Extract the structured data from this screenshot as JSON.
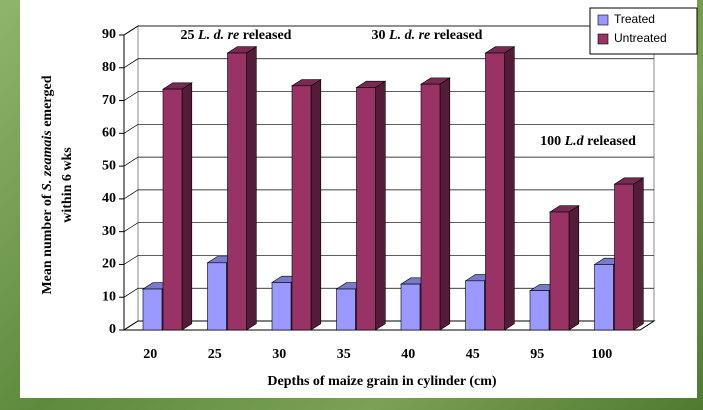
{
  "chart_data": {
    "type": "bar3d",
    "categories": [
      "20",
      "25",
      "30",
      "35",
      "40",
      "45",
      "95",
      "100"
    ],
    "series": [
      {
        "name": "Treated",
        "color": "#9999ff",
        "values": [
          12.5,
          20.5,
          14.5,
          12.5,
          14,
          15,
          12,
          20
        ]
      },
      {
        "name": "Untreated",
        "color": "#993366",
        "values": [
          73.5,
          84.5,
          74.5,
          74,
          75,
          84.5,
          36,
          44.5
        ]
      }
    ],
    "ylim": [
      0,
      90
    ],
    "yticks": [
      0,
      10,
      20,
      30,
      40,
      50,
      60,
      70,
      80,
      90
    ],
    "grid": true,
    "x_label": "Depths of maize grain in cylinder (cm)",
    "y_label": [
      [
        "Mean number of ",
        "S. zeamais",
        " emerged"
      ],
      [
        "within 6 wks"
      ]
    ],
    "annotations": [
      [
        "25 ",
        "L. d. re",
        " released"
      ],
      [
        "30 ",
        "L. d. re",
        " released"
      ],
      [
        "100 ",
        "L.d",
        " released"
      ]
    ],
    "legend": "top-right"
  }
}
